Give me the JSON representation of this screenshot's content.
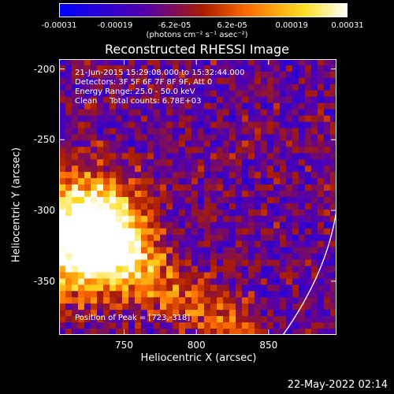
{
  "colorbar": {
    "ticks": [
      "-0.00031",
      "-0.00019",
      "-6.2e-05",
      "6.2e-05",
      "0.00019",
      "0.00031"
    ],
    "tick_values": [
      -0.00031,
      -0.00019,
      -6.2e-05,
      6.2e-05,
      0.00019,
      0.00031
    ],
    "units": "(photons cm⁻² s⁻¹ asec⁻²)",
    "colors": [
      "#0000ff",
      "#5500aa",
      "#aa1d00",
      "#ff6a00",
      "#ffdf20",
      "#ffffff"
    ]
  },
  "chart_data": {
    "type": "heatmap",
    "title": "Reconstructed RHESSI Image",
    "xlabel": "Heliocentric X (arcsec)",
    "ylabel": "Heliocentric Y (arcsec)",
    "xlim": [
      705,
      897
    ],
    "ylim": [
      -388,
      -193
    ],
    "xticks": [
      750,
      800,
      850
    ],
    "xtick_labels": [
      "750",
      "800",
      "850"
    ],
    "yticks": [
      -200,
      -250,
      -300,
      -350
    ],
    "ytick_labels": [
      "-200",
      "-250",
      "-300",
      "-350"
    ],
    "annotations": [
      "21-Jun-2015 15:29:08.000 to 15:32:44.000",
      "Detectors: 3F 5F 6F 7F 8F 9F, Att 0",
      "Energy Range: 25.0 - 50.0 keV",
      "Clean     Total counts: 6.78E+03"
    ],
    "peak_text": "Position of Peak = [723,-318]",
    "peak_position": [
      723,
      -318
    ],
    "limb_arc": [
      [
        860,
        -388
      ],
      [
        897,
        -300
      ]
    ]
  },
  "timestamp": "22-May-2022 02:14"
}
